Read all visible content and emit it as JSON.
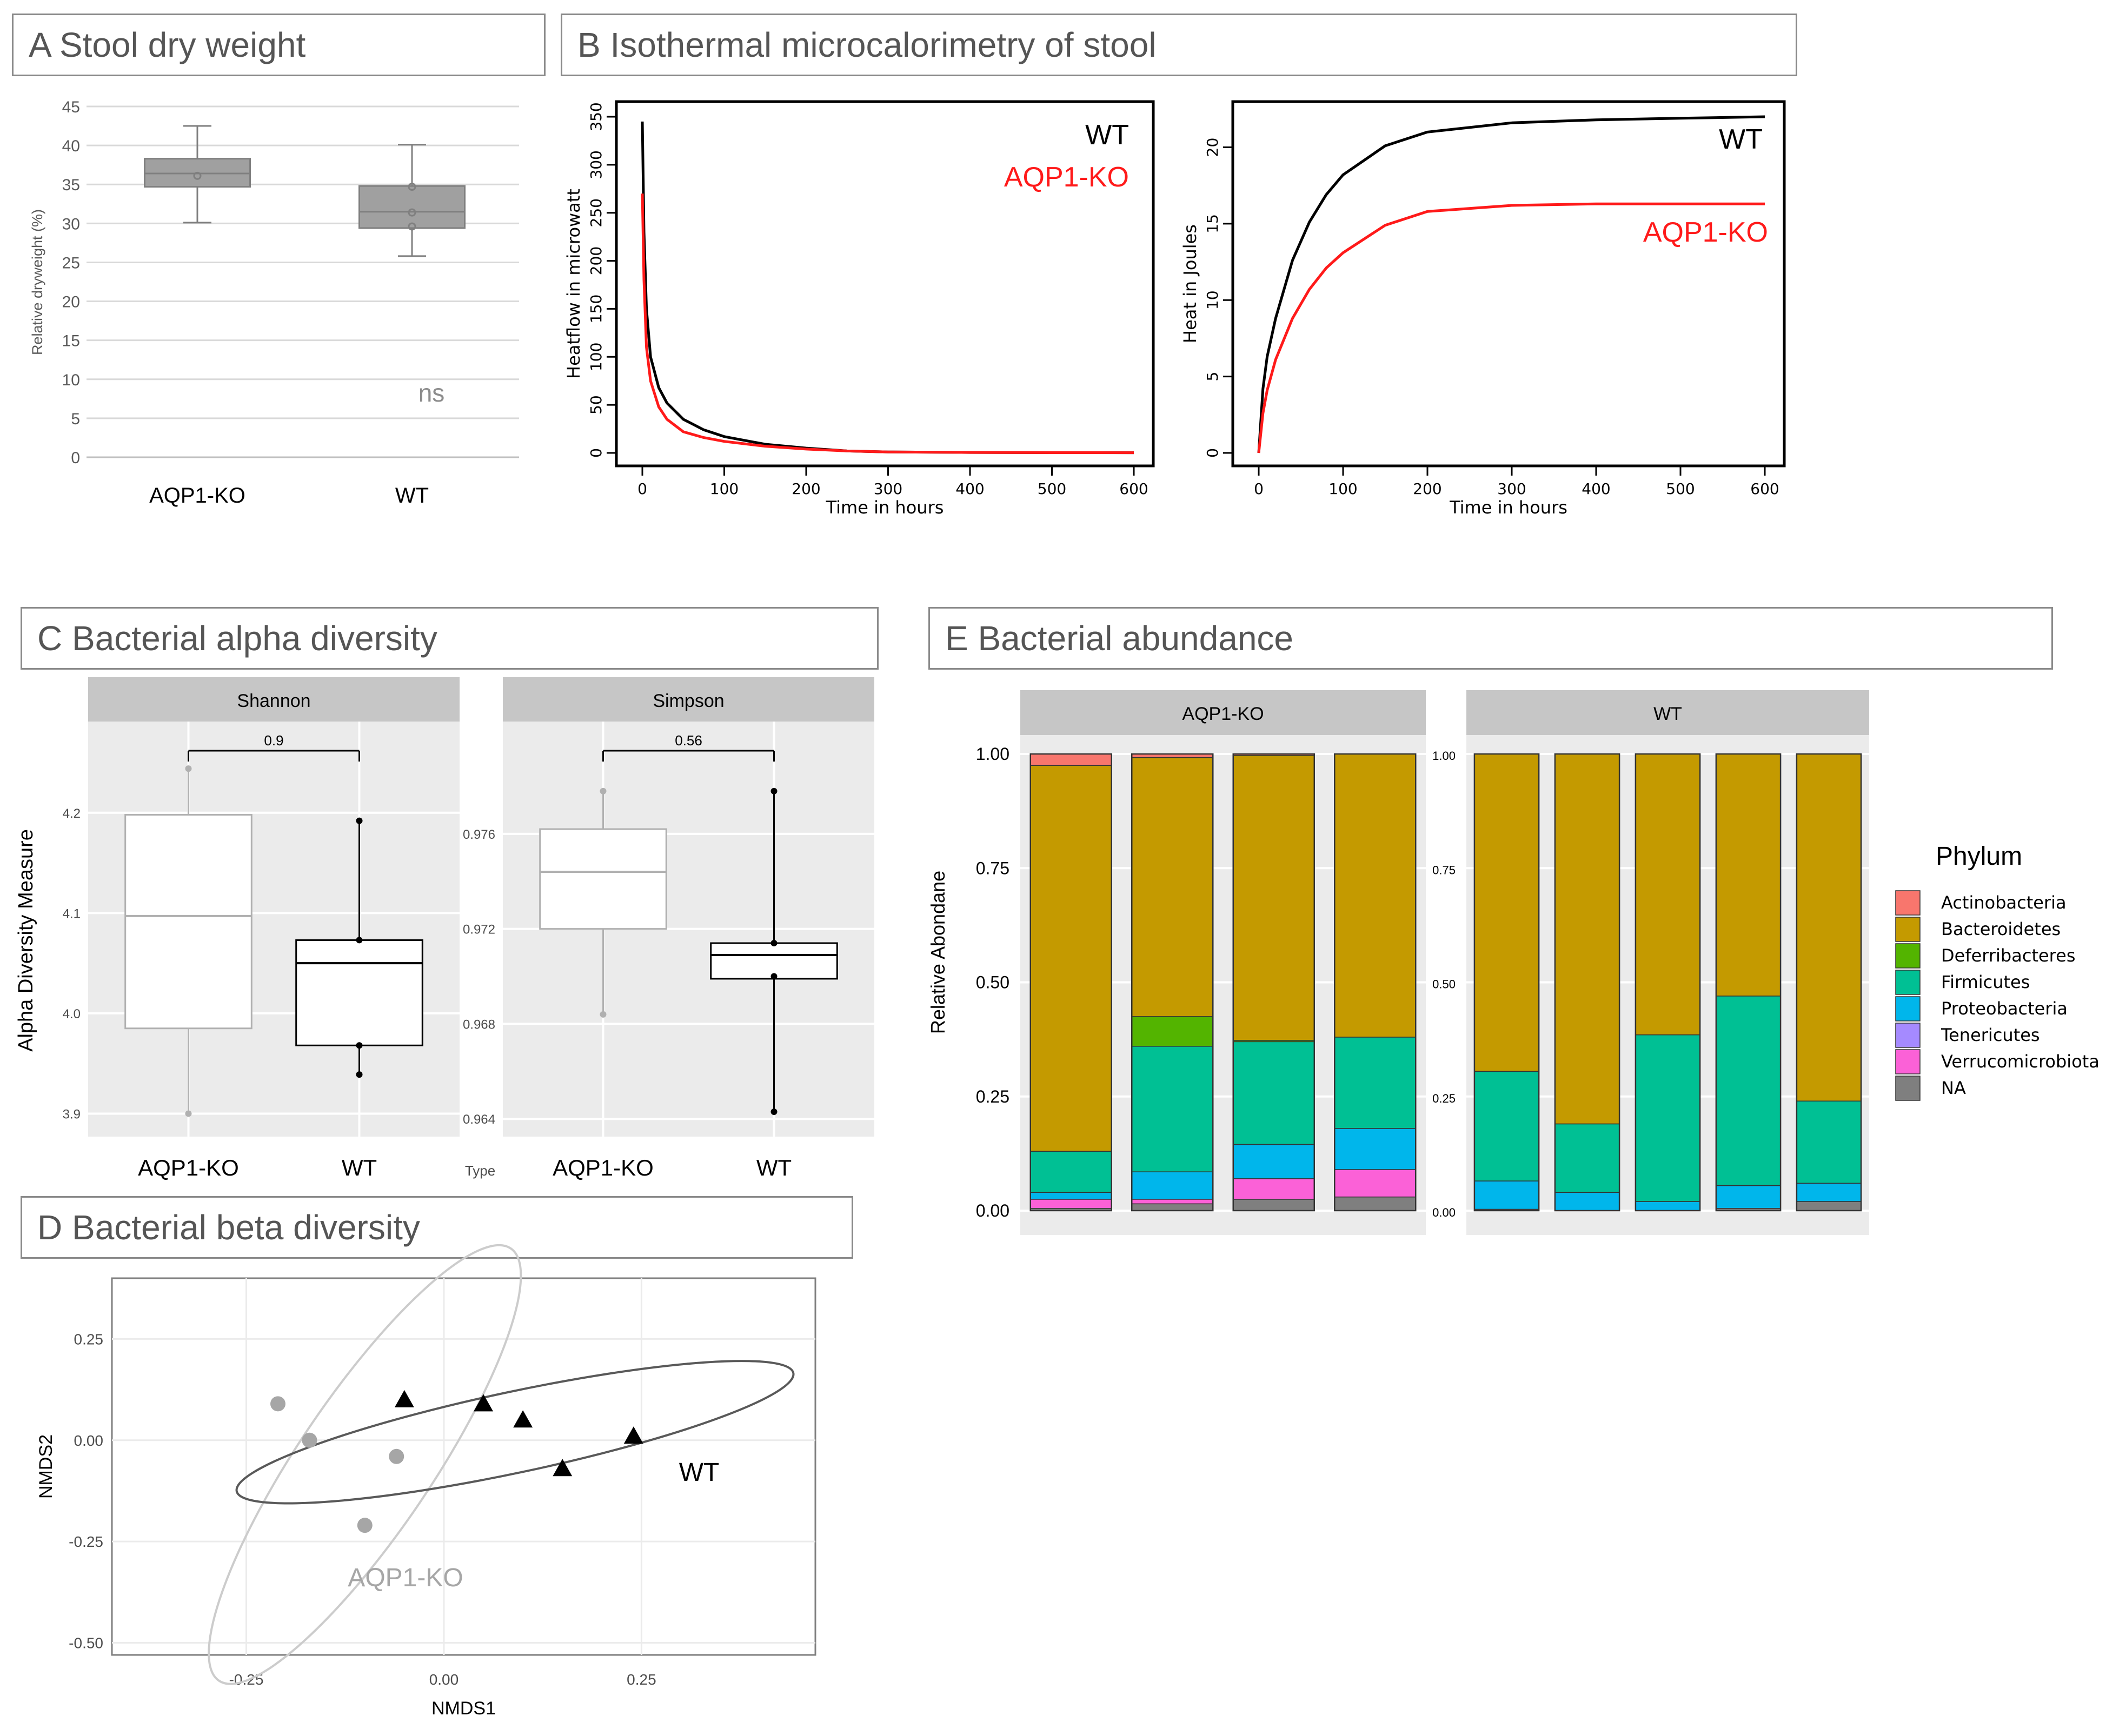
{
  "panels": {
    "A": {
      "title": "A Stool dry weight"
    },
    "B": {
      "title": "B Isothermal microcalorimetry of stool"
    },
    "C": {
      "title": "C Bacterial alpha diversity"
    },
    "D": {
      "title": "D Bacterial beta diversity"
    },
    "E": {
      "title": "E Bacterial abundance"
    }
  },
  "colors": {
    "box_gray": "#a0a0a0",
    "ko_red": "#ff1a1a",
    "wt_black": "#000000",
    "facet_strip": "#c6c6c6",
    "ggplot_panel": "#ebebeb",
    "ko_gray": "#a6a6a6"
  },
  "chart_data": [
    {
      "id": "A",
      "type": "box",
      "ylabel": "Relative dryweight (%)",
      "ylim": [
        0,
        45
      ],
      "yticks": [
        0,
        5,
        10,
        15,
        20,
        25,
        30,
        35,
        40,
        45
      ],
      "categories": [
        "AQP1-KO",
        "WT"
      ],
      "boxes": [
        {
          "name": "AQP1-KO",
          "min": 30.1,
          "q1": 34.7,
          "median": 36.4,
          "q3": 38.3,
          "max": 42.5,
          "points": [
            36.1
          ]
        },
        {
          "name": "WT",
          "min": 25.8,
          "q1": 29.4,
          "median": 31.5,
          "q3": 34.8,
          "max": 40.1,
          "points": [
            34.7,
            31.4,
            29.6
          ]
        }
      ],
      "annotation": "ns",
      "grid": true
    },
    {
      "id": "B1",
      "type": "line",
      "xlabel": "Time in hours",
      "ylabel": "Heatflow in microwatt",
      "xlim": [
        0,
        600
      ],
      "ylim": [
        0,
        350
      ],
      "xticks": [
        0,
        100,
        200,
        300,
        400,
        500,
        600
      ],
      "yticks": [
        0,
        50,
        100,
        150,
        200,
        250,
        300,
        350
      ],
      "series": [
        {
          "name": "WT",
          "x": [
            0,
            2,
            5,
            10,
            20,
            30,
            50,
            75,
            100,
            150,
            200,
            250,
            300,
            400,
            500,
            600
          ],
          "y": [
            345,
            230,
            150,
            100,
            68,
            52,
            35,
            24,
            17,
            9,
            5,
            2,
            1,
            0.5,
            0.3,
            0.2
          ]
        },
        {
          "name": "AQP1-KO",
          "x": [
            0,
            2,
            5,
            10,
            20,
            30,
            50,
            75,
            100,
            150,
            200,
            250,
            300,
            400,
            500,
            600
          ],
          "y": [
            270,
            180,
            110,
            75,
            48,
            35,
            22,
            16,
            12,
            7,
            4,
            2,
            1,
            0.5,
            0.3,
            0.2
          ]
        }
      ],
      "legend_position": "top-right",
      "grid": false
    },
    {
      "id": "B2",
      "type": "line",
      "xlabel": "Time in hours",
      "ylabel": "Heat in Joules",
      "xlim": [
        0,
        600
      ],
      "ylim": [
        0,
        22
      ],
      "xticks": [
        0,
        100,
        200,
        300,
        400,
        500,
        600
      ],
      "yticks": [
        0,
        5,
        10,
        15,
        20
      ],
      "series": [
        {
          "name": "WT",
          "x": [
            0,
            5,
            10,
            20,
            40,
            60,
            80,
            100,
            150,
            200,
            300,
            400,
            500,
            600
          ],
          "y": [
            0,
            4.2,
            6.3,
            8.8,
            12.6,
            15.1,
            16.9,
            18.2,
            20.1,
            21.0,
            21.6,
            21.8,
            21.9,
            22.0
          ]
        },
        {
          "name": "AQP1-KO",
          "x": [
            0,
            5,
            10,
            20,
            40,
            60,
            80,
            100,
            150,
            200,
            300,
            400,
            500,
            600
          ],
          "y": [
            0,
            2.6,
            4.1,
            6.1,
            8.8,
            10.7,
            12.1,
            13.1,
            14.9,
            15.8,
            16.2,
            16.3,
            16.3,
            16.3
          ]
        }
      ],
      "legend_position": "right",
      "grid": false
    },
    {
      "id": "C-shannon",
      "type": "box",
      "facet": "Shannon",
      "ylabel": "Alpha Diversity Measure",
      "xlabel": "Type",
      "ylim": [
        3.89,
        4.25
      ],
      "yticks": [
        3.9,
        4.0,
        4.1,
        4.2
      ],
      "ytick_labels": [
        "3.9",
        "4.0",
        "4.1",
        "4.2"
      ],
      "categories": [
        "AQP1-KO",
        "WT"
      ],
      "boxes": [
        {
          "name": "AQP1-KO",
          "min": 3.9,
          "q1": 3.985,
          "median": 4.097,
          "q3": 4.198,
          "max": 4.244,
          "points": [
            4.244,
            3.9
          ]
        },
        {
          "name": "WT",
          "min": 3.939,
          "q1": 3.968,
          "median": 4.05,
          "q3": 4.073,
          "max": 4.192,
          "points": [
            4.192,
            4.073,
            3.968,
            3.939
          ]
        }
      ],
      "pvalue": "0.9"
    },
    {
      "id": "C-simpson",
      "type": "box",
      "facet": "Simpson",
      "ylim": [
        0.9638,
        0.979
      ],
      "yticks": [
        0.964,
        0.968,
        0.972,
        0.976
      ],
      "ytick_labels": [
        "0.964",
        "0.968",
        "0.972",
        "0.976"
      ],
      "categories": [
        "AQP1-KO",
        "WT"
      ],
      "boxes": [
        {
          "name": "AQP1-KO",
          "min": 0.9684,
          "q1": 0.972,
          "median": 0.9744,
          "q3": 0.9762,
          "max": 0.9778,
          "points": [
            0.9778,
            0.9684
          ]
        },
        {
          "name": "WT",
          "min": 0.9643,
          "q1": 0.9699,
          "median": 0.9709,
          "q3": 0.9714,
          "max": 0.9778,
          "points": [
            0.9778,
            0.9714,
            0.97,
            0.9643
          ]
        }
      ],
      "pvalue": "0.56"
    },
    {
      "id": "D",
      "type": "scatter",
      "xlabel": "NMDS1",
      "ylabel": "NMDS2",
      "xlim": [
        -0.42,
        0.47
      ],
      "ylim": [
        -0.53,
        0.4
      ],
      "xticks": [
        -0.25,
        0.0,
        0.25
      ],
      "yticks": [
        -0.5,
        -0.25,
        0.0,
        0.25
      ],
      "xtick_labels": [
        "-0.25",
        "0.00",
        "0.25"
      ],
      "ytick_labels": [
        "-0.50",
        "-0.25",
        "0.00",
        "0.25"
      ],
      "series": [
        {
          "name": "AQP1-KO",
          "marker": "circle",
          "x": [
            -0.21,
            -0.17,
            -0.06,
            -0.1
          ],
          "y": [
            0.09,
            0.0,
            -0.04,
            -0.21
          ]
        },
        {
          "name": "WT",
          "marker": "triangle",
          "x": [
            -0.05,
            0.05,
            0.1,
            0.15,
            0.24
          ],
          "y": [
            0.1,
            0.09,
            0.05,
            -0.07,
            0.01
          ]
        }
      ],
      "ellipses": [
        {
          "name": "AQP1-KO",
          "cx": -0.1,
          "cy": -0.06,
          "a": 0.33,
          "b": 0.165,
          "angle": -56
        },
        {
          "name": "WT",
          "cx": 0.09,
          "cy": 0.02,
          "a": 0.36,
          "b": 0.1,
          "angle": -12
        }
      ],
      "grid": true
    },
    {
      "id": "E",
      "type": "bar",
      "stacked": true,
      "ylabel": "Relative Abondane",
      "ylim": [
        0,
        1
      ],
      "yticks": [
        0,
        0.25,
        0.5,
        0.75,
        1.0
      ],
      "ytick_labels": [
        "0.00",
        "0.25",
        "0.50",
        "0.75",
        "1.00"
      ],
      "legend_title": "Phylum",
      "legend_position": "right",
      "series": [
        {
          "name": "Actinobacteria",
          "color": "#f8766d"
        },
        {
          "name": "Bacteroidetes",
          "color": "#c49a00"
        },
        {
          "name": "Deferribacteres",
          "color": "#53b400"
        },
        {
          "name": "Firmicutes",
          "color": "#00c094"
        },
        {
          "name": "Proteobacteria",
          "color": "#00b6eb"
        },
        {
          "name": "Tenericutes",
          "color": "#a58aff"
        },
        {
          "name": "Verrucomicrobiota",
          "color": "#fb61d7"
        },
        {
          "name": "NA",
          "color": "#7f7f7f"
        }
      ],
      "facets": [
        {
          "label": "AQP1-KO",
          "samples": [
            {
              "NA": 0.005,
              "Verrucomicrobiota": 0.02,
              "Tenericutes": 0.0,
              "Proteobacteria": 0.015,
              "Firmicutes": 0.09,
              "Deferribacteres": 0.0,
              "Bacteroidetes": 0.845,
              "Actinobacteria": 0.025
            },
            {
              "NA": 0.015,
              "Verrucomicrobiota": 0.01,
              "Tenericutes": 0.0,
              "Proteobacteria": 0.06,
              "Firmicutes": 0.275,
              "Deferribacteres": 0.065,
              "Bacteroidetes": 0.567,
              "Actinobacteria": 0.008
            },
            {
              "NA": 0.025,
              "Verrucomicrobiota": 0.045,
              "Tenericutes": 0.0,
              "Proteobacteria": 0.075,
              "Firmicutes": 0.225,
              "Deferribacteres": 0.003,
              "Bacteroidetes": 0.624,
              "Actinobacteria": 0.003
            },
            {
              "NA": 0.03,
              "Verrucomicrobiota": 0.06,
              "Tenericutes": 0.0,
              "Proteobacteria": 0.09,
              "Firmicutes": 0.2,
              "Deferribacteres": 0.0,
              "Bacteroidetes": 0.62,
              "Actinobacteria": 0.0
            }
          ]
        },
        {
          "label": "WT",
          "samples": [
            {
              "NA": 0.003,
              "Verrucomicrobiota": 0.0,
              "Tenericutes": 0.0,
              "Proteobacteria": 0.062,
              "Firmicutes": 0.24,
              "Deferribacteres": 0.0,
              "Bacteroidetes": 0.695,
              "Actinobacteria": 0.0
            },
            {
              "NA": 0.0,
              "Verrucomicrobiota": 0.0,
              "Tenericutes": 0.0,
              "Proteobacteria": 0.04,
              "Firmicutes": 0.15,
              "Deferribacteres": 0.0,
              "Bacteroidetes": 0.81,
              "Actinobacteria": 0.0
            },
            {
              "NA": 0.0,
              "Verrucomicrobiota": 0.0,
              "Tenericutes": 0.0,
              "Proteobacteria": 0.02,
              "Firmicutes": 0.365,
              "Deferribacteres": 0.0,
              "Bacteroidetes": 0.615,
              "Actinobacteria": 0.0
            },
            {
              "NA": 0.005,
              "Verrucomicrobiota": 0.0,
              "Tenericutes": 0.0,
              "Proteobacteria": 0.05,
              "Firmicutes": 0.415,
              "Deferribacteres": 0.0,
              "Bacteroidetes": 0.53,
              "Actinobacteria": 0.0
            },
            {
              "NA": 0.02,
              "Verrucomicrobiota": 0.0,
              "Tenericutes": 0.0,
              "Proteobacteria": 0.04,
              "Firmicutes": 0.18,
              "Deferribacteres": 0.0,
              "Bacteroidetes": 0.76,
              "Actinobacteria": 0.0
            }
          ]
        }
      ]
    }
  ]
}
